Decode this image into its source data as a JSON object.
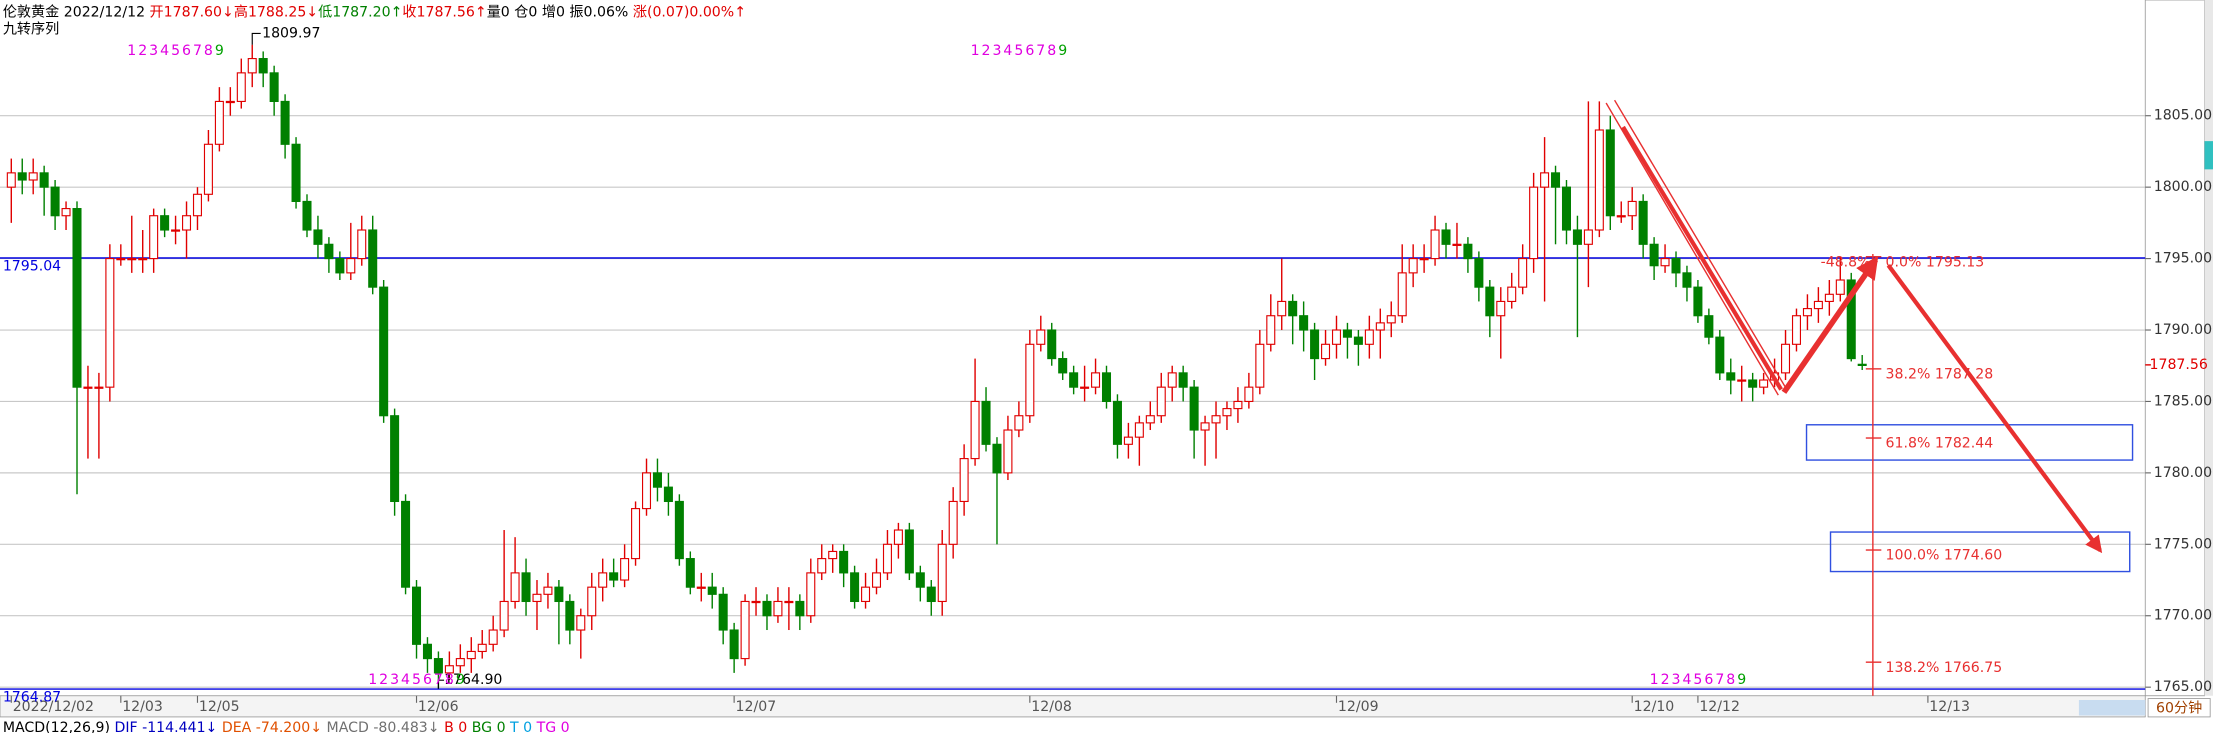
{
  "chart_data": {
    "type": "candlestick",
    "header": [
      {
        "text": "伦敦黄金 2022/12/12 ",
        "color": "#000000"
      },
      {
        "text": "开1787.60↓",
        "color": "#e00000"
      },
      {
        "text": "高1788.25↓",
        "color": "#e00000"
      },
      {
        "text": "低1787.20↑",
        "color": "#008000"
      },
      {
        "text": "收1787.56↑",
        "color": "#e00000"
      },
      {
        "text": "量0 仓0 增0 振0.06% ",
        "color": "#000000"
      },
      {
        "text": "涨(0.07)0.00%↑",
        "color": "#e00000"
      }
    ],
    "indicator": "九转序列",
    "up_color": "#e00000",
    "down_color": "#008000",
    "ylim": [
      1764.4,
      1813.1
    ],
    "yticks": [
      {
        "value": 1765,
        "label": "1765.00"
      },
      {
        "value": 1770,
        "label": "1770.00"
      },
      {
        "value": 1775,
        "label": "1775.00"
      },
      {
        "value": 1780,
        "label": "1780.00"
      },
      {
        "value": 1785,
        "label": "1785.00"
      },
      {
        "value": 1790,
        "label": "1790.00"
      },
      {
        "value": 1795,
        "label": "1795.00"
      },
      {
        "value": 1800,
        "label": "1800.00"
      },
      {
        "value": 1805,
        "label": "1805.00"
      }
    ],
    "grid": true,
    "categories": [
      "2022/12/02",
      null,
      null,
      null,
      null,
      null,
      null,
      null,
      null,
      null,
      "12/03",
      null,
      null,
      null,
      null,
      null,
      null,
      "12/05",
      null,
      null,
      null,
      null,
      null,
      null,
      null,
      null,
      null,
      null,
      null,
      null,
      null,
      null,
      null,
      null,
      null,
      null,
      null,
      "12/06",
      null,
      null,
      null,
      null,
      null,
      null,
      null,
      null,
      null,
      null,
      null,
      null,
      null,
      null,
      null,
      null,
      null,
      null,
      null,
      null,
      null,
      null,
      null,
      null,
      null,
      null,
      null,
      null,
      "12/07",
      null,
      null,
      null,
      null,
      null,
      null,
      null,
      null,
      null,
      null,
      null,
      null,
      null,
      null,
      null,
      null,
      null,
      null,
      null,
      null,
      null,
      null,
      null,
      null,
      null,
      null,
      "12/08",
      null,
      null,
      null,
      null,
      null,
      null,
      null,
      null,
      null,
      null,
      null,
      null,
      null,
      null,
      null,
      null,
      null,
      null,
      null,
      null,
      null,
      null,
      null,
      null,
      null,
      null,
      null,
      "12/09",
      null,
      null,
      null,
      null,
      null,
      null,
      null,
      null,
      null,
      null,
      null,
      null,
      null,
      null,
      null,
      null,
      null,
      null,
      null,
      null,
      null,
      null,
      null,
      null,
      null,
      null,
      "12/10",
      null,
      null,
      null,
      null,
      null,
      "12/12",
      null,
      null,
      null,
      null,
      null,
      null,
      null,
      null,
      null,
      null,
      null,
      null,
      null,
      null,
      null,
      null,
      null,
      null,
      null,
      null,
      "12/13"
    ],
    "ohlc": [
      [
        1800,
        1802,
        1797.5,
        1801
      ],
      [
        1801,
        1802,
        1799.5,
        1800.5
      ],
      [
        1800.5,
        1802,
        1799.5,
        1801
      ],
      [
        1801,
        1801.5,
        1798,
        1800
      ],
      [
        1800,
        1800.5,
        1797,
        1798
      ],
      [
        1798,
        1799,
        1797,
        1798.5
      ],
      [
        1798.5,
        1799,
        1778.5,
        1786
      ],
      [
        1786,
        1787.5,
        1781,
        1786
      ],
      [
        1786,
        1787,
        1781,
        1786
      ],
      [
        1786,
        1796,
        1785,
        1795
      ],
      [
        1795,
        1796,
        1794.5,
        1795
      ],
      [
        1795,
        1798,
        1794,
        1795
      ],
      [
        1795,
        1797,
        1794,
        1795
      ],
      [
        1795,
        1798.5,
        1794,
        1798
      ],
      [
        1798,
        1798.5,
        1796.5,
        1797
      ],
      [
        1797,
        1798,
        1796,
        1797
      ],
      [
        1797,
        1799,
        1795,
        1798
      ],
      [
        1798,
        1800,
        1797,
        1799.5
      ],
      [
        1799.5,
        1804,
        1799,
        1803
      ],
      [
        1803,
        1807,
        1802.5,
        1806
      ],
      [
        1806,
        1807,
        1805,
        1806
      ],
      [
        1806,
        1809,
        1805.5,
        1808
      ],
      [
        1808,
        1809.97,
        1807,
        1809
      ],
      [
        1809,
        1809.5,
        1807,
        1808
      ],
      [
        1808,
        1808.5,
        1805,
        1806
      ],
      [
        1806,
        1806.5,
        1802,
        1803
      ],
      [
        1803,
        1803.5,
        1798.5,
        1799
      ],
      [
        1799,
        1799.5,
        1796.5,
        1797
      ],
      [
        1797,
        1798,
        1795,
        1796
      ],
      [
        1796,
        1796.5,
        1794,
        1795
      ],
      [
        1795,
        1795.5,
        1793.5,
        1794
      ],
      [
        1794,
        1797.5,
        1793.5,
        1795
      ],
      [
        1795,
        1798,
        1794.5,
        1797
      ],
      [
        1797,
        1798,
        1792.5,
        1793
      ],
      [
        1793,
        1793.5,
        1783.5,
        1784
      ],
      [
        1784,
        1784.5,
        1777,
        1778
      ],
      [
        1778,
        1778.5,
        1771.5,
        1772
      ],
      [
        1772,
        1772.5,
        1767,
        1768
      ],
      [
        1768,
        1768.5,
        1766,
        1767
      ],
      [
        1767,
        1767.5,
        1764.9,
        1766
      ],
      [
        1766,
        1767.5,
        1765.5,
        1766.5
      ],
      [
        1766.5,
        1768,
        1766,
        1767
      ],
      [
        1767,
        1768.5,
        1766,
        1767.5
      ],
      [
        1767.5,
        1769,
        1767,
        1768
      ],
      [
        1768,
        1770,
        1767.5,
        1769
      ],
      [
        1769,
        1776,
        1768.5,
        1771
      ],
      [
        1771,
        1775.5,
        1770.5,
        1773
      ],
      [
        1773,
        1774,
        1770,
        1771
      ],
      [
        1771,
        1772.5,
        1769,
        1771.5
      ],
      [
        1771.5,
        1773,
        1770.5,
        1772
      ],
      [
        1772,
        1772.5,
        1768,
        1771
      ],
      [
        1771,
        1771.5,
        1768,
        1769
      ],
      [
        1769,
        1770.5,
        1767,
        1770
      ],
      [
        1770,
        1773,
        1769,
        1772
      ],
      [
        1772,
        1774,
        1771,
        1773
      ],
      [
        1773,
        1774,
        1772,
        1772.5
      ],
      [
        1772.5,
        1775,
        1772,
        1774
      ],
      [
        1774,
        1778,
        1773.5,
        1777.5
      ],
      [
        1777.5,
        1781,
        1777,
        1780
      ],
      [
        1780,
        1781,
        1778,
        1779
      ],
      [
        1779,
        1780,
        1777,
        1778
      ],
      [
        1778,
        1778.5,
        1773.5,
        1774
      ],
      [
        1774,
        1774.5,
        1771.5,
        1772
      ],
      [
        1772,
        1773,
        1771,
        1772
      ],
      [
        1772,
        1773,
        1770.5,
        1771.5
      ],
      [
        1771.5,
        1772,
        1768,
        1769
      ],
      [
        1769,
        1769.5,
        1766,
        1767
      ],
      [
        1767,
        1771.5,
        1766.5,
        1771
      ],
      [
        1771,
        1772,
        1770,
        1771
      ],
      [
        1771,
        1771.5,
        1769,
        1770
      ],
      [
        1770,
        1772,
        1769.5,
        1771
      ],
      [
        1771,
        1772,
        1769,
        1771
      ],
      [
        1771,
        1771.5,
        1769,
        1770
      ],
      [
        1770,
        1774,
        1769.5,
        1773
      ],
      [
        1773,
        1775,
        1772.5,
        1774
      ],
      [
        1774,
        1775,
        1773,
        1774.5
      ],
      [
        1774.5,
        1775,
        1772,
        1773
      ],
      [
        1773,
        1773.5,
        1770.5,
        1771
      ],
      [
        1771,
        1773,
        1770.5,
        1772
      ],
      [
        1772,
        1774,
        1771.5,
        1773
      ],
      [
        1773,
        1776,
        1772.5,
        1775
      ],
      [
        1775,
        1776.5,
        1774,
        1776
      ],
      [
        1776,
        1776.5,
        1772.5,
        1773
      ],
      [
        1773,
        1773.5,
        1771,
        1772
      ],
      [
        1772,
        1772.5,
        1770,
        1771
      ],
      [
        1771,
        1776,
        1770,
        1775
      ],
      [
        1775,
        1779,
        1774,
        1778
      ],
      [
        1778,
        1782,
        1777,
        1781
      ],
      [
        1781,
        1788,
        1780.5,
        1785
      ],
      [
        1785,
        1786,
        1781.5,
        1782
      ],
      [
        1782,
        1782.5,
        1775,
        1780
      ],
      [
        1780,
        1784,
        1779.5,
        1783
      ],
      [
        1783,
        1785,
        1782.5,
        1784
      ],
      [
        1784,
        1790,
        1783.5,
        1789
      ],
      [
        1789,
        1791,
        1788.5,
        1790
      ],
      [
        1790,
        1790.5,
        1787.5,
        1788
      ],
      [
        1788,
        1788.5,
        1786.5,
        1787
      ],
      [
        1787,
        1787.5,
        1785.5,
        1786
      ],
      [
        1786,
        1787.5,
        1785,
        1786
      ],
      [
        1786,
        1788,
        1785.5,
        1787
      ],
      [
        1787,
        1787.5,
        1784.5,
        1785
      ],
      [
        1785,
        1785.5,
        1781,
        1782
      ],
      [
        1782,
        1783.5,
        1781,
        1782.5
      ],
      [
        1782.5,
        1784,
        1780.5,
        1783.5
      ],
      [
        1783.5,
        1785,
        1783,
        1784
      ],
      [
        1784,
        1787,
        1783.5,
        1786
      ],
      [
        1786,
        1787.5,
        1785,
        1787
      ],
      [
        1787,
        1787.5,
        1785,
        1786
      ],
      [
        1786,
        1786.5,
        1781,
        1783
      ],
      [
        1783,
        1784,
        1780.5,
        1783.5
      ],
      [
        1783.5,
        1785,
        1781,
        1784
      ],
      [
        1784,
        1785,
        1783,
        1784.5
      ],
      [
        1784.5,
        1786,
        1783.5,
        1785
      ],
      [
        1785,
        1787,
        1784.5,
        1786
      ],
      [
        1786,
        1790,
        1785.5,
        1789
      ],
      [
        1789,
        1792.5,
        1788.5,
        1791
      ],
      [
        1791,
        1795,
        1790,
        1792
      ],
      [
        1792,
        1792.5,
        1789,
        1791
      ],
      [
        1791,
        1792,
        1788.5,
        1790
      ],
      [
        1790,
        1790.5,
        1786.5,
        1788
      ],
      [
        1788,
        1790,
        1787.5,
        1789
      ],
      [
        1789,
        1791,
        1788,
        1790
      ],
      [
        1790,
        1790.5,
        1788,
        1789.5
      ],
      [
        1789.5,
        1790,
        1787.5,
        1789
      ],
      [
        1789,
        1791,
        1788,
        1790
      ],
      [
        1790,
        1791.5,
        1788,
        1790.5
      ],
      [
        1790.5,
        1792,
        1789.5,
        1791
      ],
      [
        1791,
        1796,
        1790.5,
        1794
      ],
      [
        1794,
        1796,
        1793,
        1795
      ],
      [
        1795,
        1796,
        1794,
        1795
      ],
      [
        1795,
        1798,
        1794.5,
        1797
      ],
      [
        1797,
        1797.5,
        1795,
        1796
      ],
      [
        1796,
        1797.5,
        1795,
        1796
      ],
      [
        1796,
        1796.5,
        1794,
        1795
      ],
      [
        1795,
        1795.5,
        1792,
        1793
      ],
      [
        1793,
        1793.5,
        1789.5,
        1791
      ],
      [
        1791,
        1793,
        1788,
        1792
      ],
      [
        1792,
        1794,
        1791.5,
        1793
      ],
      [
        1793,
        1796,
        1792.5,
        1795
      ],
      [
        1795,
        1801,
        1794,
        1800
      ],
      [
        1800,
        1803.5,
        1792,
        1801
      ],
      [
        1801,
        1801.5,
        1796,
        1800
      ],
      [
        1800,
        1800.5,
        1796,
        1797
      ],
      [
        1797,
        1798,
        1789.5,
        1796
      ],
      [
        1796,
        1806,
        1793,
        1797
      ],
      [
        1797,
        1806,
        1796.5,
        1804
      ],
      [
        1804,
        1805,
        1797,
        1798
      ],
      [
        1798,
        1799,
        1797.5,
        1798
      ],
      [
        1798,
        1800,
        1797,
        1799
      ],
      [
        1799,
        1799.5,
        1795,
        1796
      ],
      [
        1796,
        1796.5,
        1793.5,
        1794.5
      ],
      [
        1794.5,
        1796,
        1794,
        1795
      ],
      [
        1795,
        1795.5,
        1793,
        1794
      ],
      [
        1794,
        1794.5,
        1792,
        1793
      ],
      [
        1793,
        1793.5,
        1790.5,
        1791
      ],
      [
        1791,
        1791.5,
        1789,
        1789.5
      ],
      [
        1789.5,
        1790,
        1786.5,
        1787
      ],
      [
        1787,
        1788,
        1785.5,
        1786.5
      ],
      [
        1786.5,
        1787.5,
        1785,
        1786.5
      ],
      [
        1786.5,
        1787,
        1785,
        1786
      ],
      [
        1786,
        1787,
        1785.5,
        1786.5
      ],
      [
        1786.5,
        1788,
        1786,
        1787
      ],
      [
        1787,
        1790,
        1786.5,
        1789
      ],
      [
        1789,
        1791.5,
        1788.5,
        1791
      ],
      [
        1791,
        1792.5,
        1790,
        1791.5
      ],
      [
        1791.5,
        1793,
        1790.5,
        1792
      ],
      [
        1792,
        1793.5,
        1791,
        1792.5
      ],
      [
        1792.5,
        1795.13,
        1792,
        1793.5
      ],
      [
        1793.5,
        1794,
        1787.8,
        1788
      ],
      [
        1787.6,
        1788.25,
        1787.2,
        1787.56
      ],
      null,
      null,
      null,
      null,
      null
    ],
    "ref_lines": [
      1795.04,
      1764.87
    ],
    "ref_color": "#0000e0",
    "last_price": 1787.56,
    "extreme_labels": [
      {
        "value": 1809.97,
        "label": "1809.97",
        "at": 22,
        "place": "top"
      },
      {
        "value": 1764.9,
        "label": "1764.90",
        "at": 39,
        "place": "bottom"
      }
    ],
    "nine_count": {
      "digits": [
        "1",
        "2",
        "3",
        "4",
        "5",
        "6",
        "7",
        "8",
        "9"
      ],
      "runs": [
        {
          "start": 11,
          "place": "top"
        },
        {
          "start": 88,
          "place": "top"
        },
        {
          "start": 33,
          "place": "bottom"
        },
        {
          "start": 150,
          "place": "bottom"
        }
      ]
    },
    "fib_levels": [
      {
        "value": 1795.13,
        "label": "0.0% 1795.13"
      },
      {
        "value": 1787.28,
        "label": "38.2% 1787.28"
      },
      {
        "value": 1782.44,
        "label": "61.8% 1782.44"
      },
      {
        "value": 1774.6,
        "label": "100.0% 1774.60"
      },
      {
        "value": 1766.75,
        "label": "138.2% 1766.75"
      }
    ],
    "fib_note": "-48.8%",
    "period": "60分钟",
    "macd": [
      {
        "text": "MACD(12,26,9) ",
        "color": "#000000"
      },
      {
        "text": "DIF -114.441↓ ",
        "color": "#0000c0"
      },
      {
        "text": "DEA -74.200↓ ",
        "color": "#e05000"
      },
      {
        "text": "MACD -80.483↓ ",
        "color": "#707070"
      },
      {
        "text": "B 0 ",
        "color": "#e00000"
      },
      {
        "text": "BG 0 ",
        "color": "#008000"
      },
      {
        "text": "T 0 ",
        "color": "#00a0e0"
      },
      {
        "text": "TG 0",
        "color": "#e000e0"
      }
    ]
  }
}
